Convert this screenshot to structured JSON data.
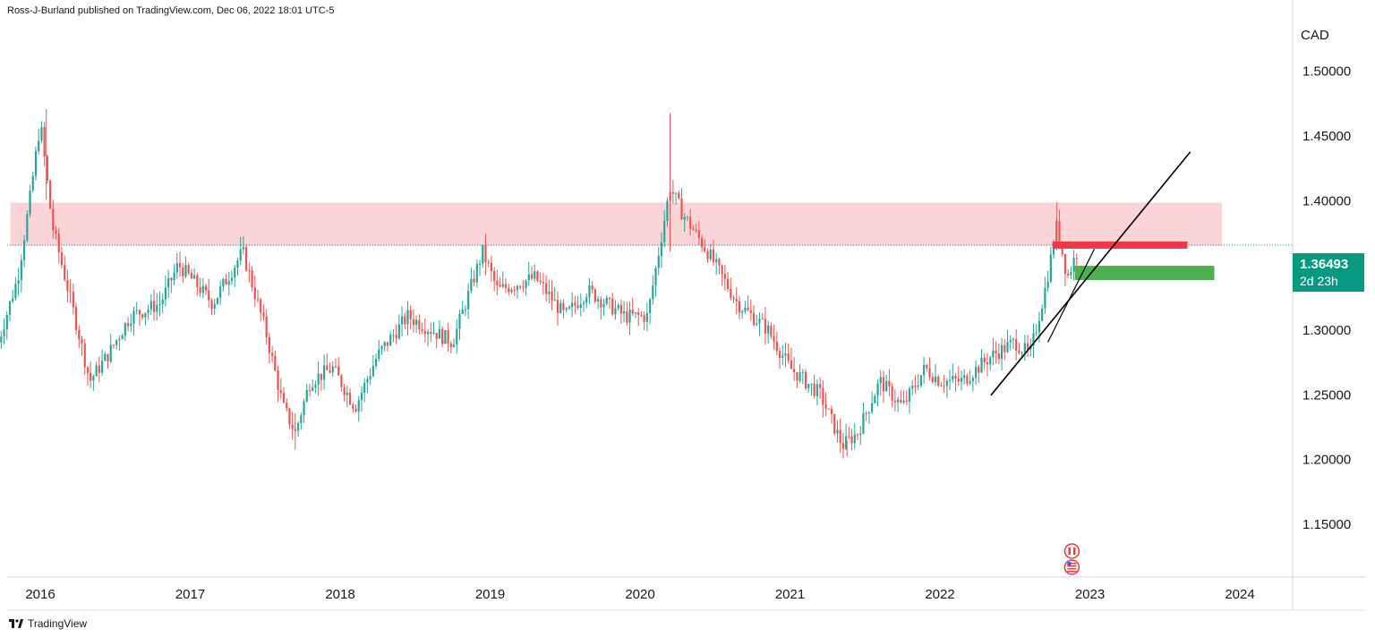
{
  "header": {
    "published": "Ross-J-Burland published on TradingView.com, Dec 06, 2022 18:01 UTC-5"
  },
  "footer": {
    "logo_text": "TradingView"
  },
  "price_badge": {
    "price": "1.36493",
    "countdown": "2d 23h"
  },
  "colors": {
    "up": "#26a69a",
    "down": "#ef5350",
    "zone": "#f9c9cc",
    "red_bar": "#f23645",
    "green_bar": "#4caf50",
    "badge": "#089981",
    "trendline": "#000000"
  },
  "icons": [
    "canada-flag-icon",
    "usa-flag-icon",
    "tradingview-logo-icon"
  ],
  "chart_data": {
    "type": "candlestick",
    "symbol_currency": "CAD",
    "x_range": [
      2015.72,
      2024.45
    ],
    "ylim": [
      1.1086,
      1.5543
    ],
    "x_ticks": [
      "2016",
      "2017",
      "2018",
      "2019",
      "2020",
      "2021",
      "2022",
      "2023",
      "2024"
    ],
    "y_ticks": [
      "1.50000",
      "1.45000",
      "1.40000",
      "1.30000",
      "1.25000",
      "1.20000",
      "1.15000"
    ],
    "current_price": 1.36493,
    "anchors": [
      [
        2015.72,
        1.29
      ],
      [
        2015.85,
        1.34
      ],
      [
        2015.93,
        1.4
      ],
      [
        2016.0,
        1.46
      ],
      [
        2016.08,
        1.38
      ],
      [
        2016.25,
        1.3
      ],
      [
        2016.33,
        1.26
      ],
      [
        2016.45,
        1.28
      ],
      [
        2016.6,
        1.31
      ],
      [
        2016.8,
        1.32
      ],
      [
        2016.92,
        1.35
      ],
      [
        2017.0,
        1.34
      ],
      [
        2017.15,
        1.32
      ],
      [
        2017.35,
        1.36
      ],
      [
        2017.5,
        1.3
      ],
      [
        2017.62,
        1.24
      ],
      [
        2017.7,
        1.22
      ],
      [
        2017.8,
        1.26
      ],
      [
        2017.95,
        1.27
      ],
      [
        2018.1,
        1.24
      ],
      [
        2018.25,
        1.28
      ],
      [
        2018.45,
        1.31
      ],
      [
        2018.6,
        1.3
      ],
      [
        2018.75,
        1.29
      ],
      [
        2018.95,
        1.36
      ],
      [
        2019.05,
        1.33
      ],
      [
        2019.3,
        1.34
      ],
      [
        2019.5,
        1.31
      ],
      [
        2019.65,
        1.33
      ],
      [
        2019.9,
        1.31
      ],
      [
        2020.05,
        1.31
      ],
      [
        2020.2,
        1.41
      ],
      [
        2020.28,
        1.39
      ],
      [
        2020.45,
        1.36
      ],
      [
        2020.65,
        1.32
      ],
      [
        2020.85,
        1.3
      ],
      [
        2021.0,
        1.27
      ],
      [
        2021.2,
        1.25
      ],
      [
        2021.35,
        1.21
      ],
      [
        2021.45,
        1.22
      ],
      [
        2021.6,
        1.26
      ],
      [
        2021.75,
        1.24
      ],
      [
        2021.9,
        1.27
      ],
      [
        2022.0,
        1.26
      ],
      [
        2022.15,
        1.26
      ],
      [
        2022.35,
        1.28
      ],
      [
        2022.5,
        1.29
      ],
      [
        2022.6,
        1.28
      ],
      [
        2022.7,
        1.33
      ],
      [
        2022.78,
        1.38
      ],
      [
        2022.85,
        1.34
      ],
      [
        2022.93,
        1.36493
      ]
    ],
    "resistance_zone": {
      "y_from": 1.3645,
      "y_to": 1.3978,
      "x_from": 2015.8,
      "x_to": 2023.88
    },
    "red_level": {
      "y": 1.365,
      "x_from": 2022.75,
      "x_to": 2023.65
    },
    "green_zone": {
      "y_from": 1.338,
      "y_to": 1.349,
      "x_from": 2022.9,
      "x_to": 2023.83
    },
    "trendline": {
      "x1": 2022.34,
      "y1": 1.249,
      "x2": 2023.67,
      "y2": 1.437
    },
    "support_line": {
      "x1": 2022.72,
      "y1": 1.29,
      "x2": 2023.03,
      "y2": 1.362
    },
    "events": [
      {
        "x": 2022.88,
        "icons": [
          "canada-flag-icon",
          "usa-flag-icon"
        ]
      }
    ]
  }
}
